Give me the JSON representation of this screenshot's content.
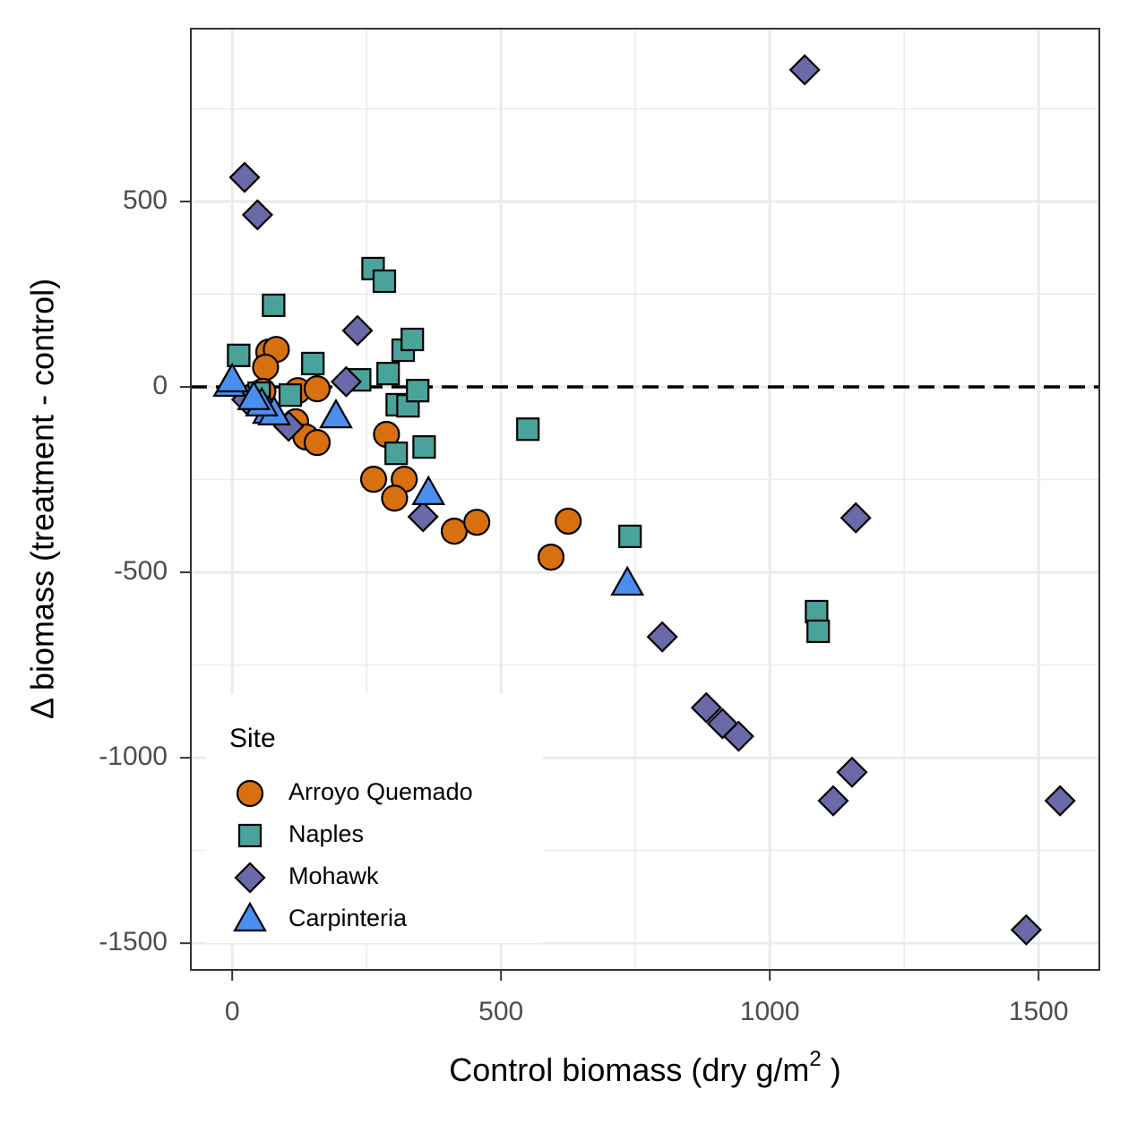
{
  "chart_data": {
    "type": "scatter",
    "xlabel": [
      "Control biomass (dry g/m",
      "2",
      " )"
    ],
    "ylabel": "Δ biomass (treatment - control)",
    "xlim": [
      -77,
      1613
    ],
    "ylim": [
      -1572,
      966
    ],
    "xticks": [
      0,
      500,
      1000,
      1500
    ],
    "yticks": [
      500,
      0,
      -500,
      -1000,
      -1500
    ],
    "xminor": [
      250,
      750,
      1250
    ],
    "yminor": [
      750,
      250,
      -250,
      -750,
      -1250
    ],
    "grid": true,
    "hline": 0,
    "legend_title": "Site",
    "legend": "bottom-left",
    "series": [
      {
        "name": "Arroyo Quemado",
        "color": "#d9700f",
        "shape": "circle",
        "x": [
          68,
          82,
          62,
          57,
          122,
          118,
          137,
          158,
          158,
          287,
          263,
          320,
          302,
          413,
          455,
          593,
          625
        ],
        "y": [
          94,
          101,
          53,
          -12,
          -10,
          -94,
          -135,
          -150,
          -5,
          -128,
          -249,
          -249,
          -300,
          -389,
          -365,
          -459,
          -362
        ]
      },
      {
        "name": "Naples",
        "color": "#4aa39a",
        "shape": "square",
        "x": [
          12,
          77,
          262,
          283,
          50,
          108,
          150,
          237,
          290,
          318,
          335,
          307,
          327,
          345,
          357,
          305,
          550,
          740,
          1087,
          1090
        ],
        "y": [
          85,
          220,
          319,
          285,
          -17,
          -22,
          63,
          19,
          36,
          99,
          128,
          -48,
          -51,
          -10,
          -162,
          -179,
          -114,
          -403,
          -606,
          -659
        ]
      },
      {
        "name": "Mohawk",
        "color": "#6a6aa8",
        "shape": "diamond",
        "x": [
          23,
          47,
          1065,
          233,
          212,
          105,
          27,
          355,
          1160,
          800,
          882,
          912,
          942,
          1153,
          1118,
          1540,
          1477
        ],
        "y": [
          565,
          464,
          855,
          152,
          14,
          -106,
          -34,
          -350,
          -353,
          -674,
          -865,
          -908,
          -942,
          -1039,
          -1116,
          -1116,
          -1464
        ]
      },
      {
        "name": "Carpinteria",
        "color": "#4a8ff0",
        "shape": "triangle",
        "x": [
          -5,
          0,
          68,
          78,
          193,
          365,
          735,
          55,
          40
        ],
        "y": [
          5,
          17,
          -68,
          -72,
          -80,
          -287,
          -531,
          -48,
          -31
        ]
      }
    ]
  }
}
